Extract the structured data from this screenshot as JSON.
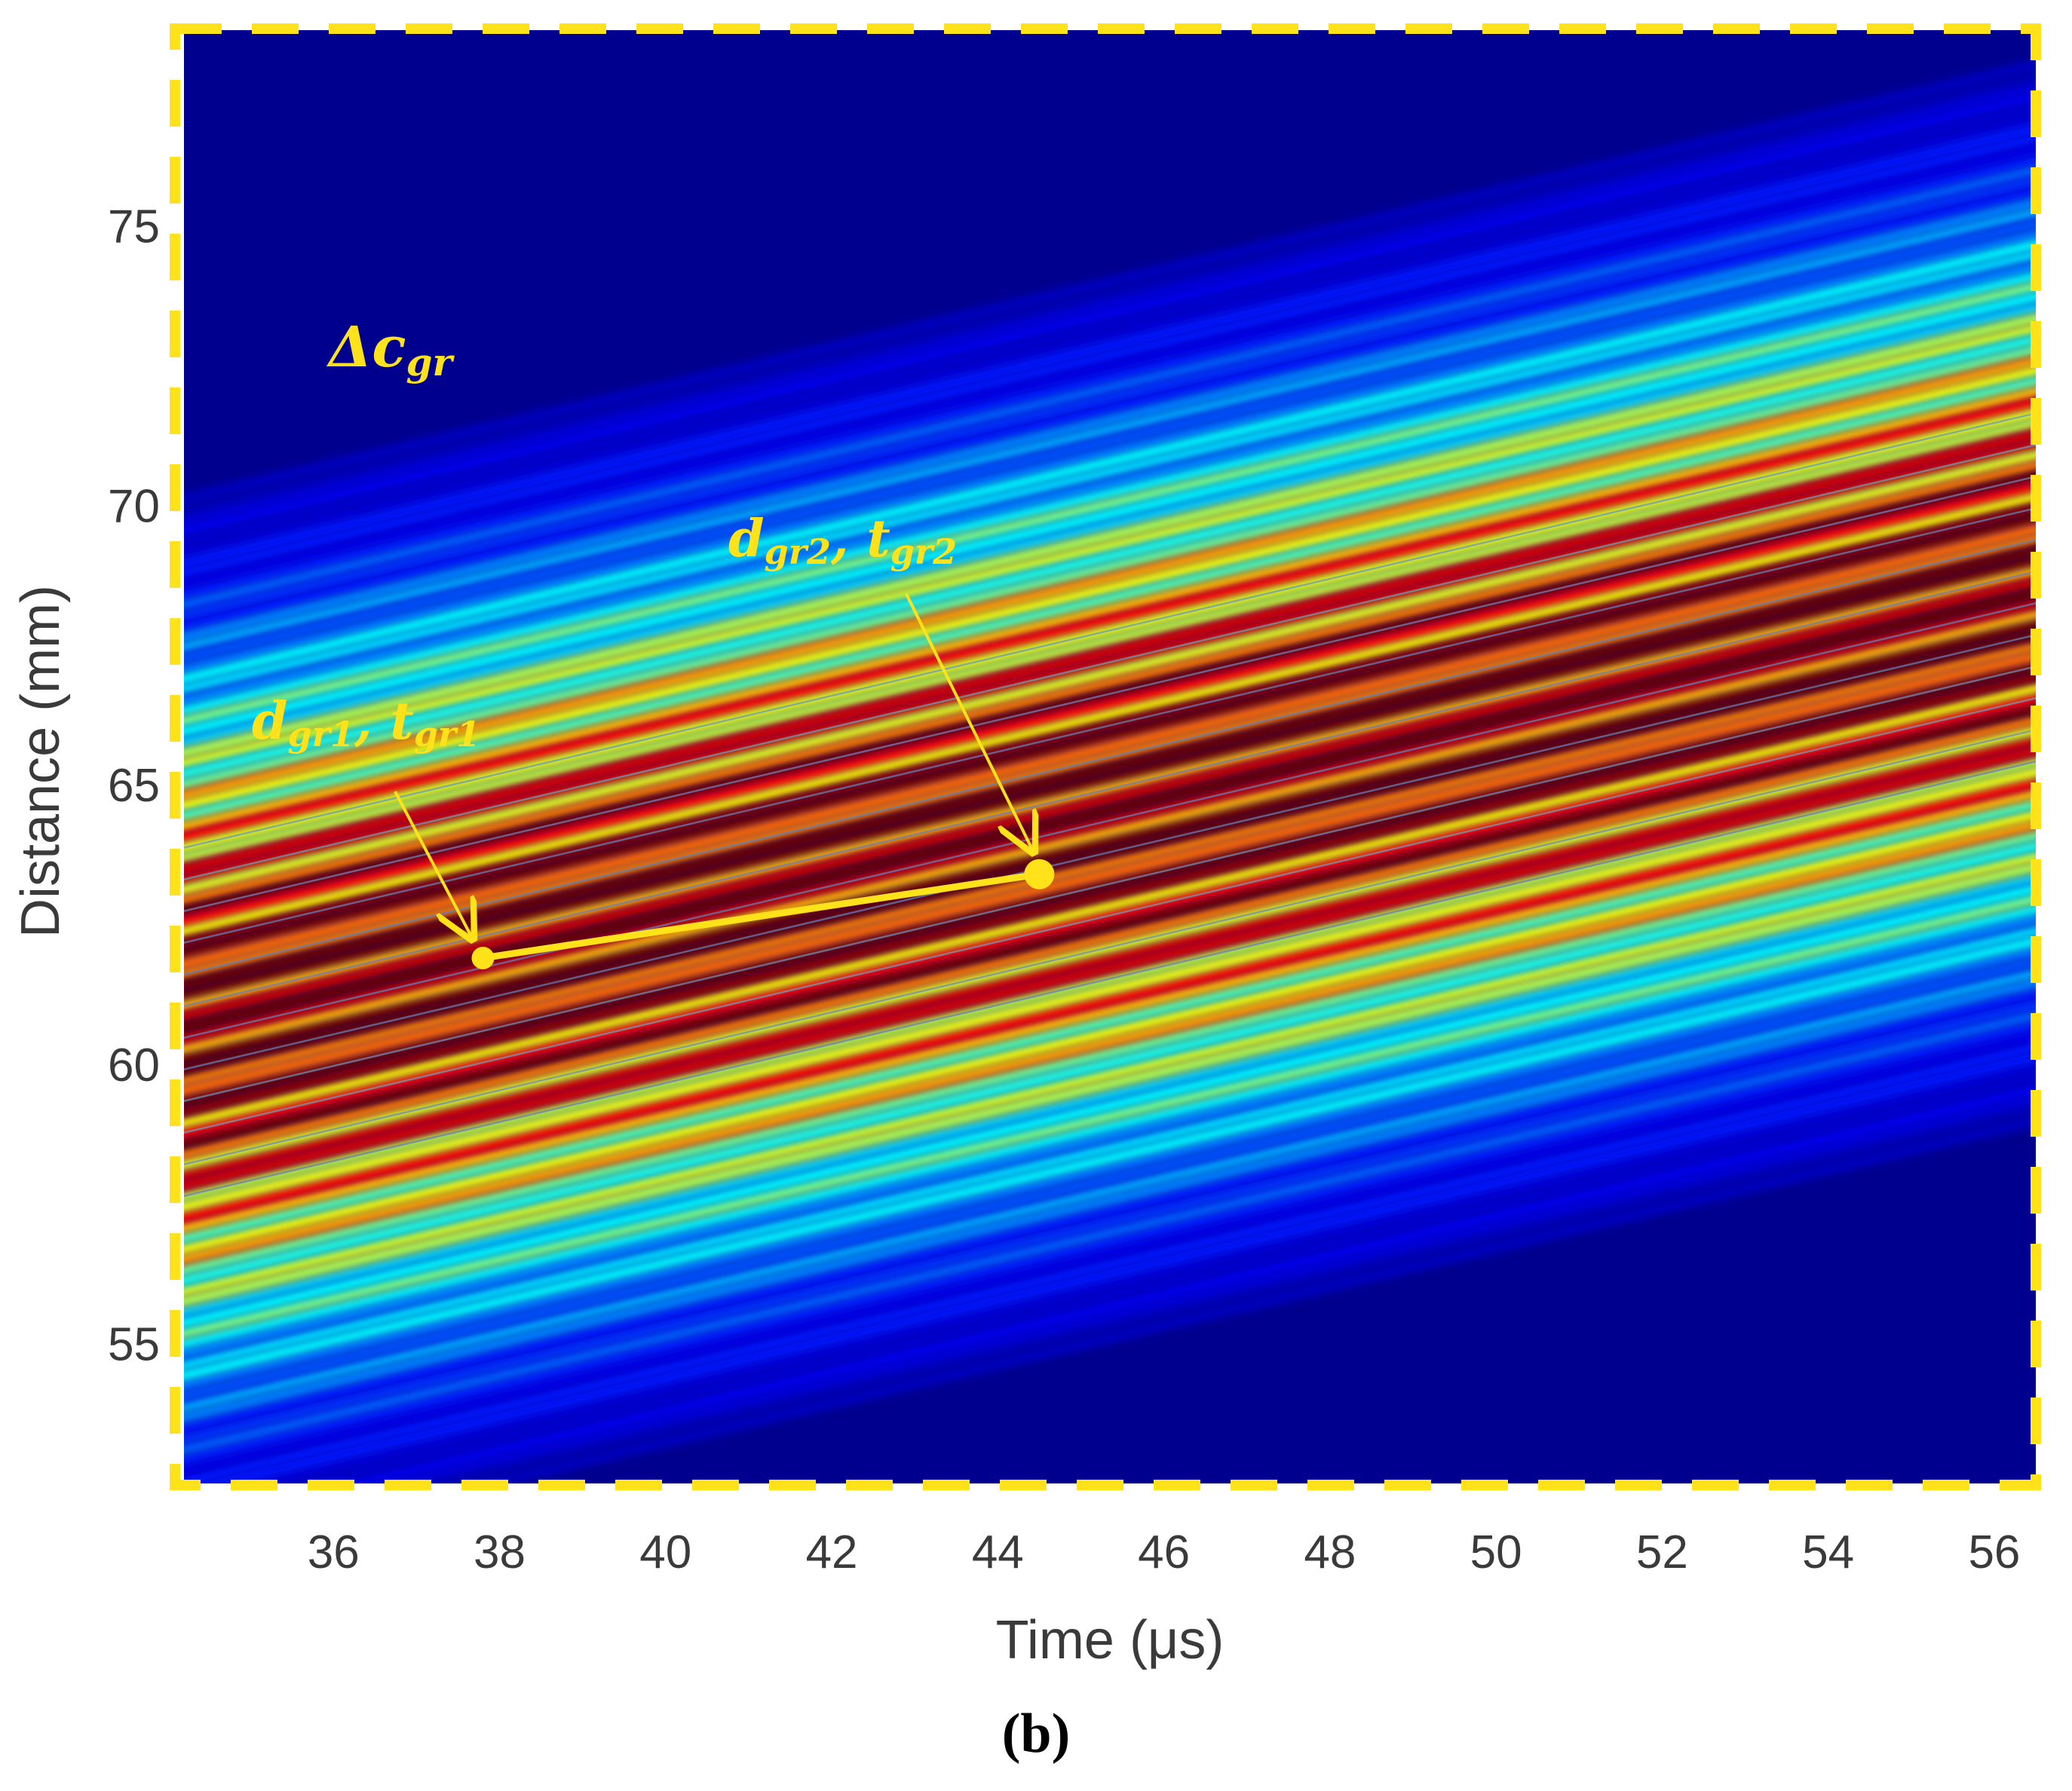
{
  "chart_data": {
    "type": "heatmap",
    "caption": "(b)",
    "xlabel": "Time (μs)",
    "ylabel": "Distance (mm)",
    "xlim": [
      34.2,
      56.5
    ],
    "ylim": [
      52.5,
      78.5
    ],
    "xticks": [
      36,
      38,
      40,
      42,
      44,
      46,
      48,
      50,
      52,
      54,
      56
    ],
    "yticks": [
      55,
      60,
      65,
      70,
      75
    ],
    "colormap": "jet",
    "band": {
      "center_start": [
        34.2,
        60.6
      ],
      "center_end": [
        56.5,
        68.5
      ],
      "description_values": "diagonal wave packet, intensity rising toward band center"
    },
    "annotations": {
      "delta_label_base": "Δc",
      "delta_label_sub": "gr",
      "point1": {
        "label_d": "d",
        "label_d_sub": "gr1",
        "label_sep": ", ",
        "label_t": "t",
        "label_t_sub": "gr1",
        "x": 37.8,
        "y": 61.9
      },
      "point2": {
        "label_d": "d",
        "label_d_sub": "gr2",
        "label_sep": ", ",
        "label_t": "t",
        "label_t_sub": "gr2",
        "x": 44.5,
        "y": 63.4
      }
    },
    "colors": {
      "background": "#00008f",
      "annotation": "#ffe21a",
      "frame": "#ffe21a"
    }
  }
}
